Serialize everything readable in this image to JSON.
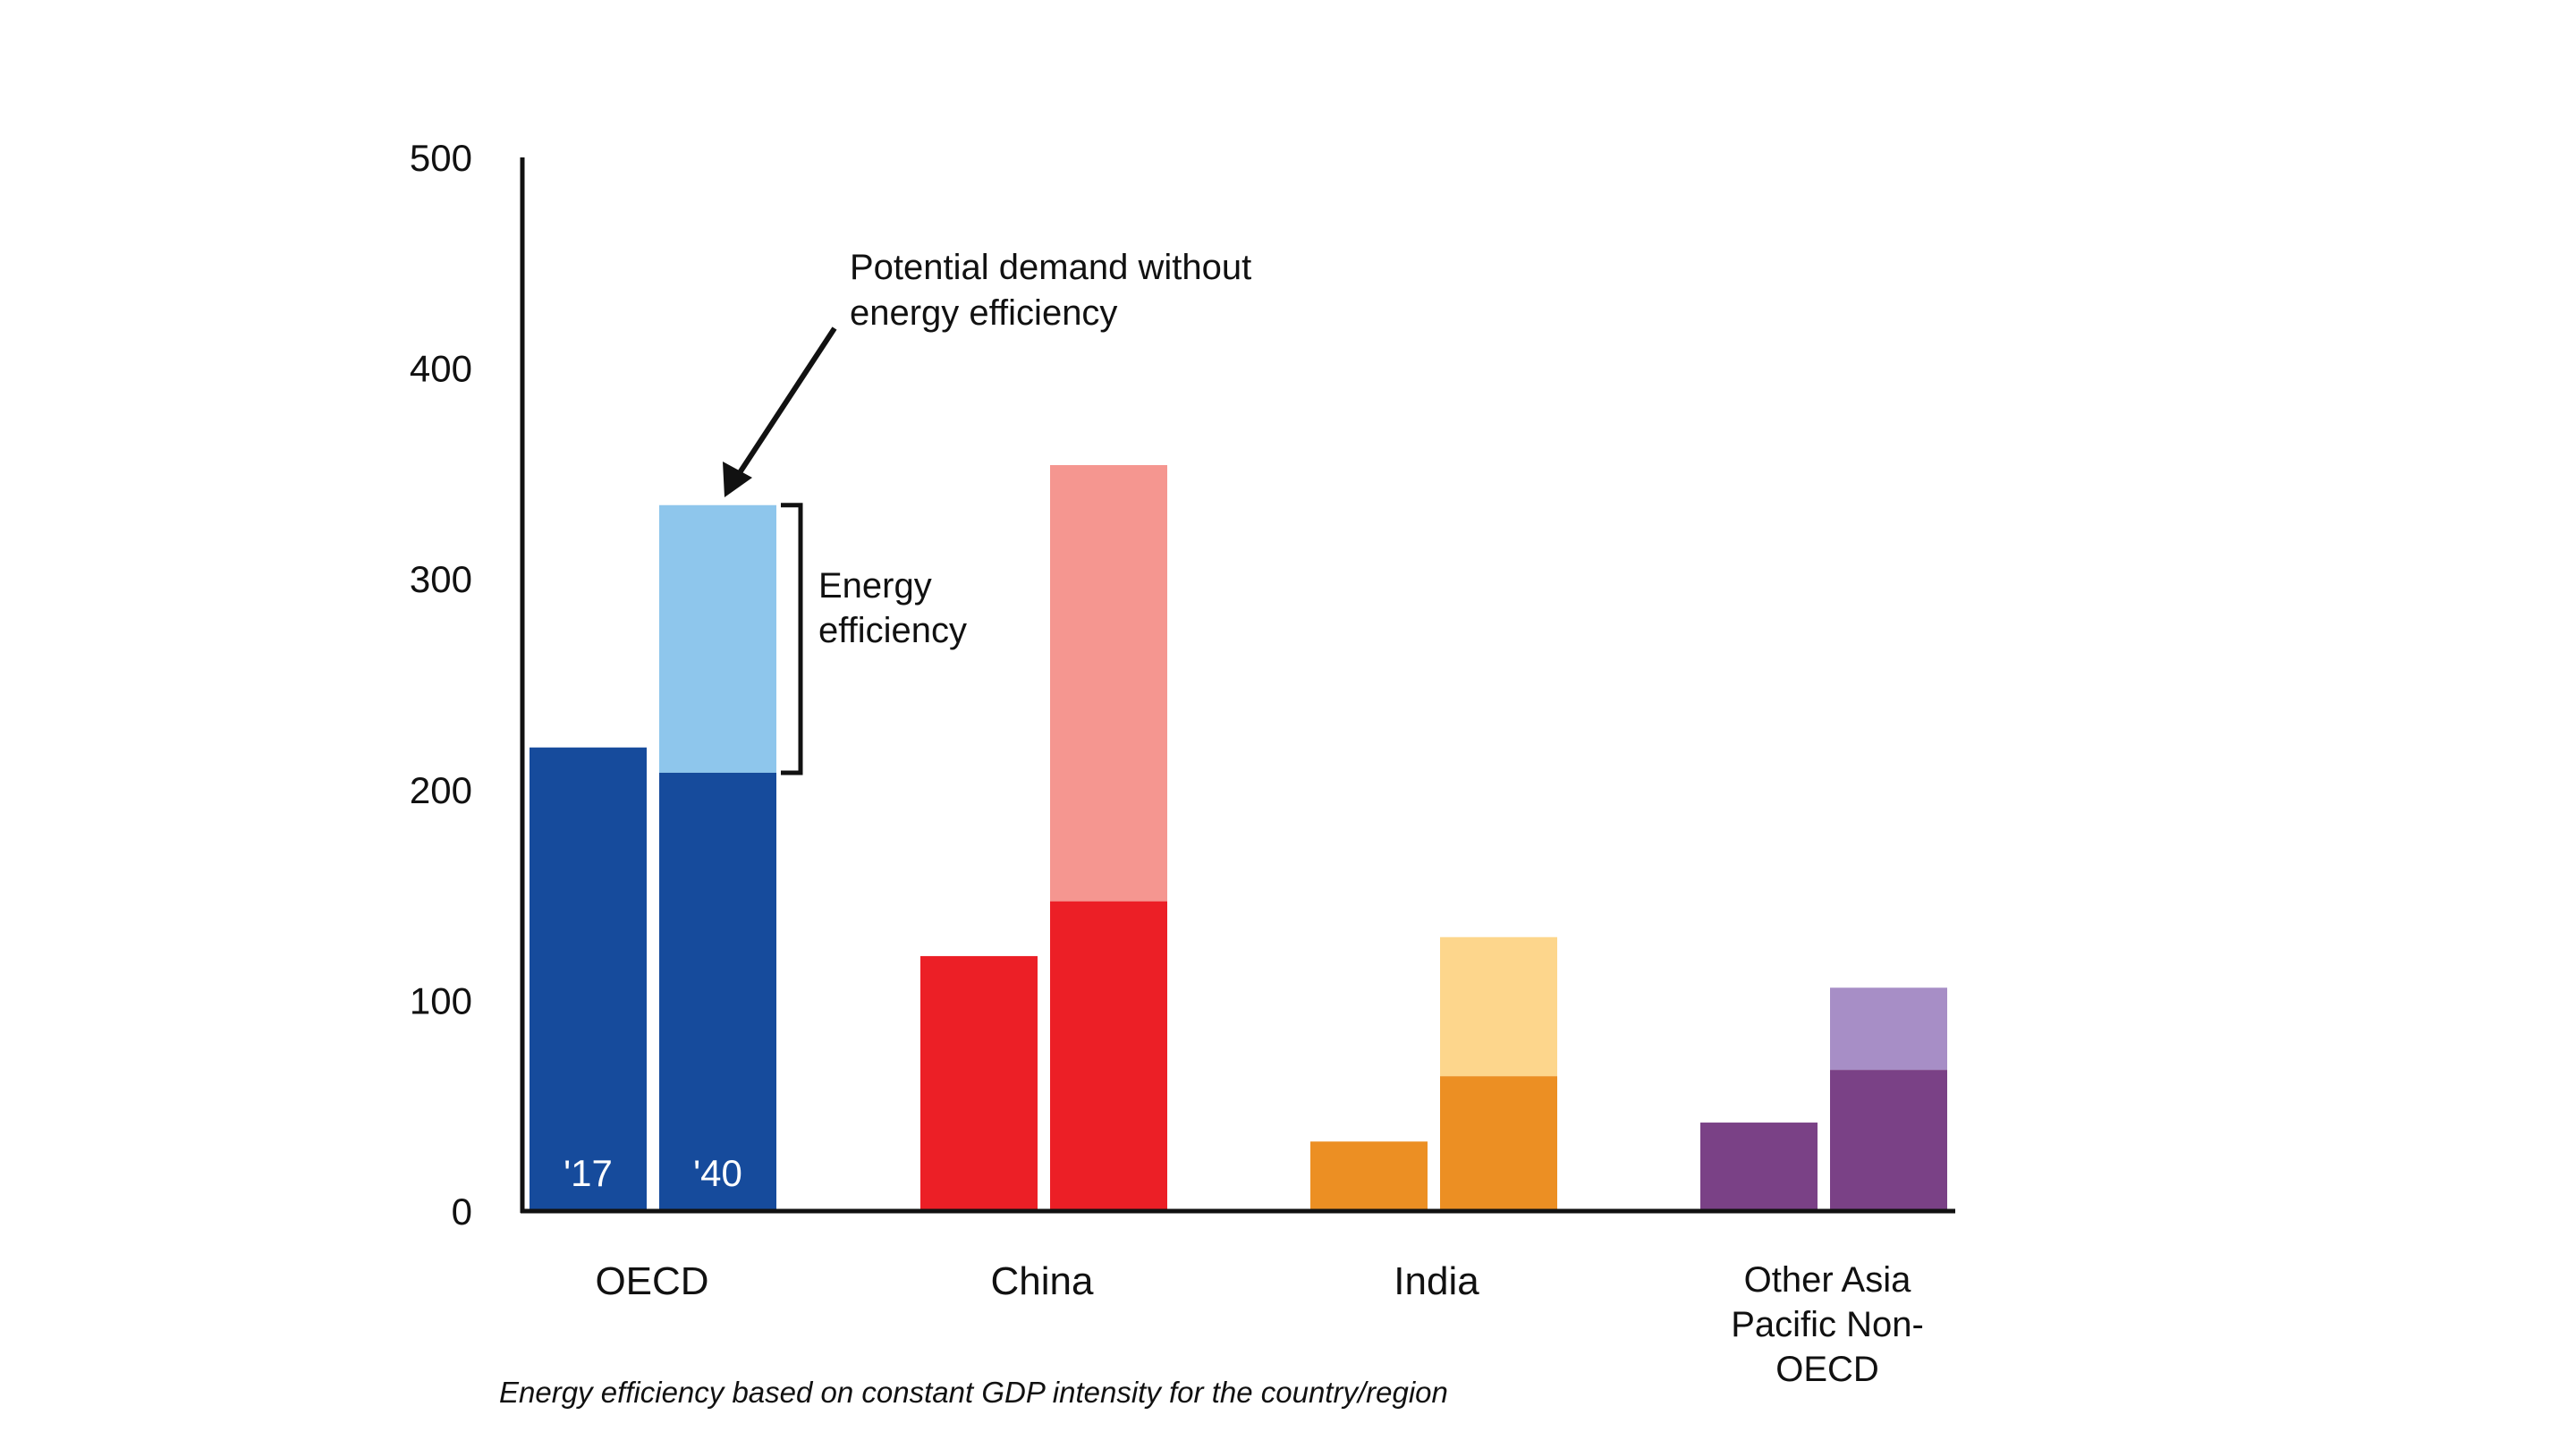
{
  "chart_data": {
    "type": "bar",
    "categories": [
      "OECD",
      "China",
      "India",
      "Other Asia Pacific Non-OECD"
    ],
    "category_label_lines": [
      [
        "OECD"
      ],
      [
        "China"
      ],
      [
        "India"
      ],
      [
        "Other Asia",
        "Pacific Non-",
        "OECD"
      ]
    ],
    "year_labels": [
      "'17",
      "'40"
    ],
    "ylim": [
      0,
      500
    ],
    "yticks": [
      0,
      100,
      200,
      300,
      400,
      500
    ],
    "stacked_bars": [
      {
        "category": "OECD",
        "year": "'17",
        "actual": 220,
        "potential_total": 220,
        "color": "#164B9C",
        "light_color": "#8EC6EC"
      },
      {
        "category": "OECD",
        "year": "'40",
        "actual": 208,
        "potential_total": 335,
        "color": "#164B9C",
        "light_color": "#8EC6EC"
      },
      {
        "category": "China",
        "year": "'17",
        "actual": 121,
        "potential_total": 121,
        "color": "#EC1F26",
        "light_color": "#F59690"
      },
      {
        "category": "China",
        "year": "'40",
        "actual": 147,
        "potential_total": 354,
        "color": "#EC1F26",
        "light_color": "#F59690"
      },
      {
        "category": "India",
        "year": "'17",
        "actual": 33,
        "potential_total": 33,
        "color": "#EC8F23",
        "light_color": "#FDD68C"
      },
      {
        "category": "India",
        "year": "'40",
        "actual": 64,
        "potential_total": 130,
        "color": "#EC8F23",
        "light_color": "#FDD68C"
      },
      {
        "category": "Other Asia Pacific Non-OECD",
        "year": "'17",
        "actual": 42,
        "potential_total": 42,
        "color": "#7A4186",
        "light_color": "#A78EC6"
      },
      {
        "category": "Other Asia Pacific Non-OECD",
        "year": "'40",
        "actual": 67,
        "potential_total": 106,
        "color": "#7A4186",
        "light_color": "#A78EC6"
      }
    ],
    "annotations": {
      "potential_demand_lines": [
        "Potential demand without",
        "energy efficiency"
      ],
      "energy_efficiency_lines": [
        "Energy",
        "efficiency"
      ]
    },
    "footnote": "Energy efficiency based on constant GDP intensity for the country/region",
    "grid": false,
    "legend": "none"
  }
}
